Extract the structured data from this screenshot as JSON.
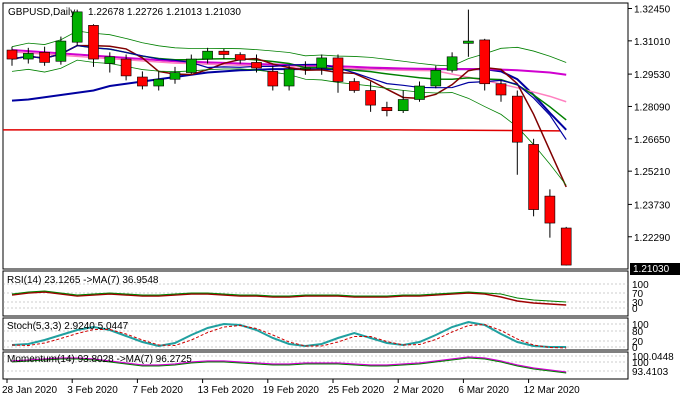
{
  "main_header": {
    "symbol_tf": "GBPUSD,Daily",
    "ohlc": "1.22678 1.22726 1.21013 1.21030"
  },
  "price_axis": {
    "ticks": [
      "1.32450",
      "1.31010",
      "1.29530",
      "1.28090",
      "1.26650",
      "1.25210",
      "1.23730",
      "1.22290"
    ],
    "current_price": "1.21030"
  },
  "date_axis": {
    "labels": [
      "28 Jan 2020",
      "3 Feb 2020",
      "7 Feb 2020",
      "13 Feb 2020",
      "19 Feb 2020",
      "25 Feb 2020",
      "2 Mar 2020",
      "6 Mar 2020",
      "12 Mar 2020"
    ]
  },
  "rsi_panel": {
    "header": "RSI(14) 23.1265 ->MA(7) 36.9548",
    "ticks": [
      "100",
      "70",
      "30",
      "0"
    ]
  },
  "stoch_panel": {
    "header": "Stoch(5,3,3) 2.9240 5.0447",
    "ticks": [
      "100",
      "80",
      "20",
      "0"
    ]
  },
  "momentum_panel": {
    "header": "Momentum(14) 93.8028 ->MA(7) 96.2725",
    "ticks": [
      "100.0448",
      "100",
      "93.4103"
    ]
  },
  "colors": {
    "bull": "#00b000",
    "bear": "#ff0000",
    "ma_navy": "#0000a0",
    "ma_magenta": "#d000d0",
    "ma_pink": "#ff80c0",
    "ma_darkred": "#800000",
    "ma_green": "#008000",
    "ma_red_long": "#e00000",
    "band": "#008000",
    "osc_main": "#20a0a0",
    "osc_signal": "#d00000",
    "rsi_main": "#a00000",
    "momentum_main": "#d000d0",
    "momentum_signal": "#008000"
  },
  "chart_data": {
    "type": "candlestick",
    "series": [
      {
        "name": "candles",
        "ohlc": [
          [
            1.306,
            1.3075,
            1.299,
            1.302
          ],
          [
            1.302,
            1.307,
            1.3,
            1.3045
          ],
          [
            1.305,
            1.3075,
            1.299,
            1.3005
          ],
          [
            1.301,
            1.312,
            1.2995,
            1.31
          ],
          [
            1.3095,
            1.324,
            1.308,
            1.323
          ],
          [
            1.317,
            1.3175,
            1.2985,
            1.302
          ],
          [
            1.3,
            1.305,
            1.296,
            1.303
          ],
          [
            1.302,
            1.304,
            1.2925,
            1.2945
          ],
          [
            1.294,
            1.2965,
            1.2885,
            1.29
          ],
          [
            1.29,
            1.2965,
            1.288,
            1.293
          ],
          [
            1.293,
            1.2985,
            1.291,
            1.296
          ],
          [
            1.296,
            1.304,
            1.2955,
            1.302
          ],
          [
            1.302,
            1.307,
            1.3,
            1.3055
          ],
          [
            1.3055,
            1.3065,
            1.302,
            1.304
          ],
          [
            1.304,
            1.305,
            1.3,
            1.3015
          ],
          [
            1.3005,
            1.304,
            1.296,
            1.298
          ],
          [
            1.2965,
            1.299,
            1.288,
            1.29
          ],
          [
            1.29,
            1.299,
            1.288,
            1.2975
          ],
          [
            1.2975,
            1.301,
            1.295,
            1.298
          ],
          [
            1.298,
            1.304,
            1.295,
            1.3025
          ],
          [
            1.3025,
            1.304,
            1.287,
            1.292
          ],
          [
            1.292,
            1.2935,
            1.287,
            1.288
          ],
          [
            1.288,
            1.292,
            1.2785,
            1.2815
          ],
          [
            1.2805,
            1.283,
            1.2765,
            1.279
          ],
          [
            1.279,
            1.288,
            1.278,
            1.284
          ],
          [
            1.284,
            1.292,
            1.283,
            1.29
          ],
          [
            1.29,
            1.299,
            1.289,
            1.297
          ],
          [
            1.297,
            1.305,
            1.296,
            1.303
          ],
          [
            1.309,
            1.324,
            1.303,
            1.31
          ],
          [
            1.3105,
            1.311,
            1.288,
            1.291
          ],
          [
            1.291,
            1.2925,
            1.283,
            1.286
          ],
          [
            1.2855,
            1.288,
            1.2505,
            1.265
          ],
          [
            1.264,
            1.2665,
            1.232,
            1.235
          ],
          [
            1.241,
            1.244,
            1.2225,
            1.229
          ],
          [
            1.2268,
            1.2273,
            1.2101,
            1.2103
          ]
        ]
      }
    ],
    "dates": [
      "28 Jan 2020",
      "3 Feb 2020",
      "7 Feb 2020",
      "13 Feb 2020",
      "19 Feb 2020",
      "25 Feb 2020",
      "2 Mar 2020",
      "6 Mar 2020",
      "12 Mar 2020"
    ],
    "last": {
      "open": 1.22678,
      "high": 1.22726,
      "low": 1.21013,
      "close": 1.2103
    },
    "rsi": {
      "period": 14,
      "value": 23.1265,
      "ma_period": 7,
      "ma_value": 36.9548
    },
    "stoch": {
      "params": "5,3,3",
      "k": 2.924,
      "d": 5.0447
    },
    "momentum": {
      "period": 14,
      "value": 93.8028,
      "ma_period": 7,
      "ma_value": 96.2725
    },
    "ylim": [
      1.209,
      1.3265
    ]
  }
}
